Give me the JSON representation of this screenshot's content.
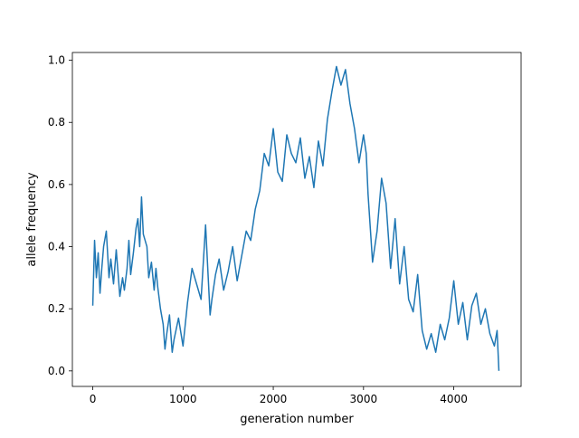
{
  "chart_data": {
    "type": "line",
    "title": "",
    "xlabel": "generation number",
    "ylabel": "allele frequency",
    "xlim": [
      -226,
      4746
    ],
    "ylim": [
      -0.05,
      1.025
    ],
    "xticks": [
      0,
      1000,
      2000,
      3000,
      4000
    ],
    "yticks": [
      0.0,
      0.2,
      0.4,
      0.6,
      0.8,
      1.0
    ],
    "xtick_labels": [
      "0",
      "1000",
      "2000",
      "3000",
      "4000"
    ],
    "ytick_labels": [
      "0.0",
      "0.2",
      "0.4",
      "0.6",
      "0.8",
      "1.0"
    ],
    "grid": false,
    "legend": "none",
    "colors": {
      "line": "#1f77b4",
      "axes": "#000000"
    },
    "series": [
      {
        "color": "#1f77b4",
        "x": [
          0,
          20,
          40,
          60,
          80,
          100,
          120,
          150,
          180,
          200,
          230,
          260,
          300,
          330,
          350,
          380,
          400,
          420,
          450,
          480,
          500,
          520,
          540,
          560,
          600,
          620,
          650,
          680,
          700,
          720,
          750,
          780,
          800,
          820,
          850,
          880,
          900,
          950,
          1000,
          1050,
          1100,
          1150,
          1200,
          1250,
          1300,
          1320,
          1360,
          1400,
          1450,
          1500,
          1550,
          1600,
          1650,
          1700,
          1750,
          1800,
          1850,
          1900,
          1950,
          2000,
          2050,
          2100,
          2150,
          2200,
          2250,
          2300,
          2350,
          2400,
          2450,
          2500,
          2550,
          2600,
          2650,
          2700,
          2750,
          2800,
          2850,
          2900,
          2950,
          3000,
          3030,
          3050,
          3100,
          3150,
          3200,
          3250,
          3300,
          3350,
          3400,
          3450,
          3500,
          3550,
          3600,
          3650,
          3700,
          3750,
          3800,
          3850,
          3900,
          3950,
          4000,
          4050,
          4100,
          4150,
          4200,
          4250,
          4300,
          4350,
          4400,
          4450,
          4480,
          4500
        ],
        "y": [
          0.21,
          0.42,
          0.3,
          0.38,
          0.25,
          0.33,
          0.4,
          0.45,
          0.3,
          0.36,
          0.28,
          0.39,
          0.24,
          0.3,
          0.26,
          0.33,
          0.42,
          0.31,
          0.38,
          0.46,
          0.49,
          0.4,
          0.56,
          0.44,
          0.4,
          0.3,
          0.35,
          0.26,
          0.33,
          0.27,
          0.2,
          0.15,
          0.07,
          0.12,
          0.18,
          0.06,
          0.1,
          0.17,
          0.08,
          0.22,
          0.33,
          0.28,
          0.23,
          0.47,
          0.18,
          0.23,
          0.31,
          0.36,
          0.26,
          0.32,
          0.4,
          0.29,
          0.37,
          0.45,
          0.42,
          0.52,
          0.58,
          0.7,
          0.66,
          0.78,
          0.64,
          0.61,
          0.76,
          0.7,
          0.67,
          0.75,
          0.62,
          0.69,
          0.59,
          0.74,
          0.66,
          0.81,
          0.9,
          0.98,
          0.92,
          0.97,
          0.86,
          0.78,
          0.67,
          0.76,
          0.7,
          0.57,
          0.35,
          0.45,
          0.62,
          0.54,
          0.33,
          0.49,
          0.28,
          0.4,
          0.23,
          0.19,
          0.31,
          0.13,
          0.07,
          0.12,
          0.06,
          0.15,
          0.1,
          0.17,
          0.29,
          0.15,
          0.22,
          0.1,
          0.21,
          0.25,
          0.15,
          0.2,
          0.12,
          0.08,
          0.13,
          0.0
        ]
      }
    ]
  }
}
